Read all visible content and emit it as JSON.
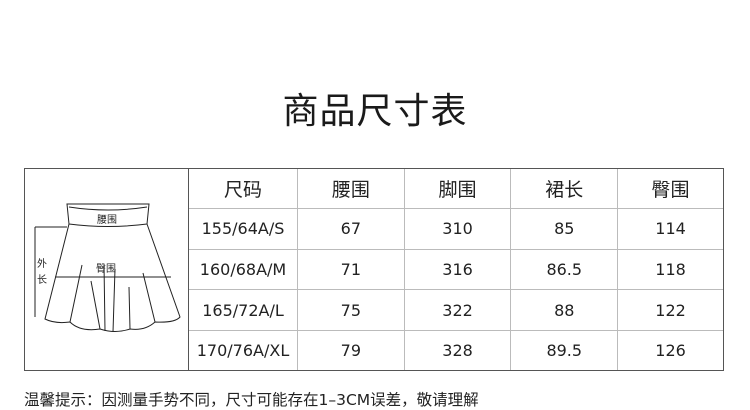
{
  "title": "商品尺寸表",
  "diagram": {
    "waist_label": "腰围",
    "hip_label": "臀围",
    "length_label_1": "外",
    "length_label_2": "长"
  },
  "table": {
    "headers": [
      "尺码",
      "腰围",
      "脚围",
      "裙长",
      "臀围"
    ],
    "rows": [
      [
        "155/64A/S",
        "67",
        "310",
        "85",
        "114"
      ],
      [
        "160/68A/M",
        "71",
        "316",
        "86.5",
        "118"
      ],
      [
        "165/72A/L",
        "75",
        "322",
        "88",
        "122"
      ],
      [
        "170/76A/XL",
        "79",
        "328",
        "89.5",
        "126"
      ]
    ]
  },
  "note": "温馨提示：因测量手势不同，尺寸可能存在1–3CM误差，敬请理解"
}
